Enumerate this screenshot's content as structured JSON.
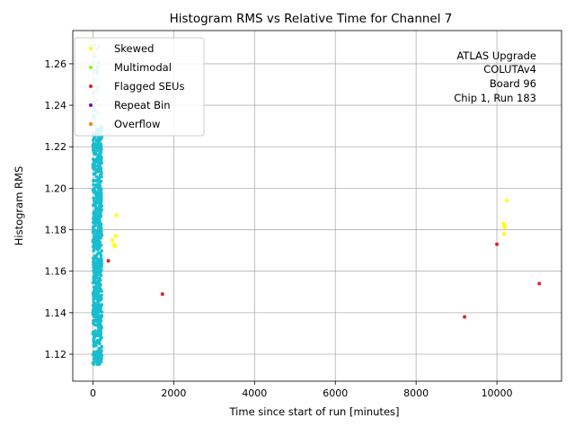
{
  "chart_data": {
    "type": "scatter",
    "title": "Histogram RMS vs Relative Time for Channel 7",
    "xlabel": "Time since start of run [minutes]",
    "ylabel": "Histogram RMS",
    "xlim": [
      -500,
      11600
    ],
    "ylim": [
      1.107,
      1.276
    ],
    "xticks": [
      0,
      2000,
      4000,
      6000,
      8000,
      10000
    ],
    "yticks": [
      1.12,
      1.14,
      1.16,
      1.18,
      1.2,
      1.22,
      1.24,
      1.26
    ],
    "xtick_labels": [
      "0",
      "2000",
      "4000",
      "6000",
      "8000",
      "10000"
    ],
    "ytick_labels": [
      "1.12",
      "1.14",
      "1.16",
      "1.18",
      "1.20",
      "1.22",
      "1.24",
      "1.26"
    ],
    "grid": true,
    "legend_position": "top-left",
    "annotation_lines": [
      "ATLAS Upgrade",
      "COLUTAv4",
      "Board 96",
      "Chip 1, Run 183"
    ],
    "cluster": {
      "color": "#17becf",
      "x_range": [
        0,
        220
      ],
      "y_range": [
        1.115,
        1.23
      ],
      "sparse_x_range": [
        0,
        150
      ],
      "sparse_y_range": [
        1.23,
        1.27
      ]
    },
    "series": [
      {
        "name": "Skewed",
        "color": "#ffff00",
        "points": [
          [
            480,
            1.175
          ],
          [
            520,
            1.173
          ],
          [
            560,
            1.177
          ],
          [
            540,
            1.172
          ],
          [
            580,
            1.187
          ],
          [
            60,
            1.26
          ],
          [
            40,
            1.265
          ],
          [
            80,
            1.24
          ],
          [
            10180,
            1.182
          ],
          [
            10200,
            1.181
          ],
          [
            10180,
            1.178
          ],
          [
            10240,
            1.194
          ],
          [
            10160,
            1.183
          ]
        ]
      },
      {
        "name": "Multimodal",
        "color": "#7fff00",
        "points": []
      },
      {
        "name": "Flagged SEUs",
        "color": "#d62728",
        "points": [
          [
            380,
            1.165
          ],
          [
            1720,
            1.149
          ],
          [
            9200,
            1.138
          ],
          [
            10000,
            1.173
          ],
          [
            11050,
            1.154
          ]
        ]
      },
      {
        "name": "Repeat Bin",
        "color": "#7f0f9f",
        "points": []
      },
      {
        "name": "Overflow",
        "color": "#ff7f0e",
        "points": []
      }
    ]
  }
}
